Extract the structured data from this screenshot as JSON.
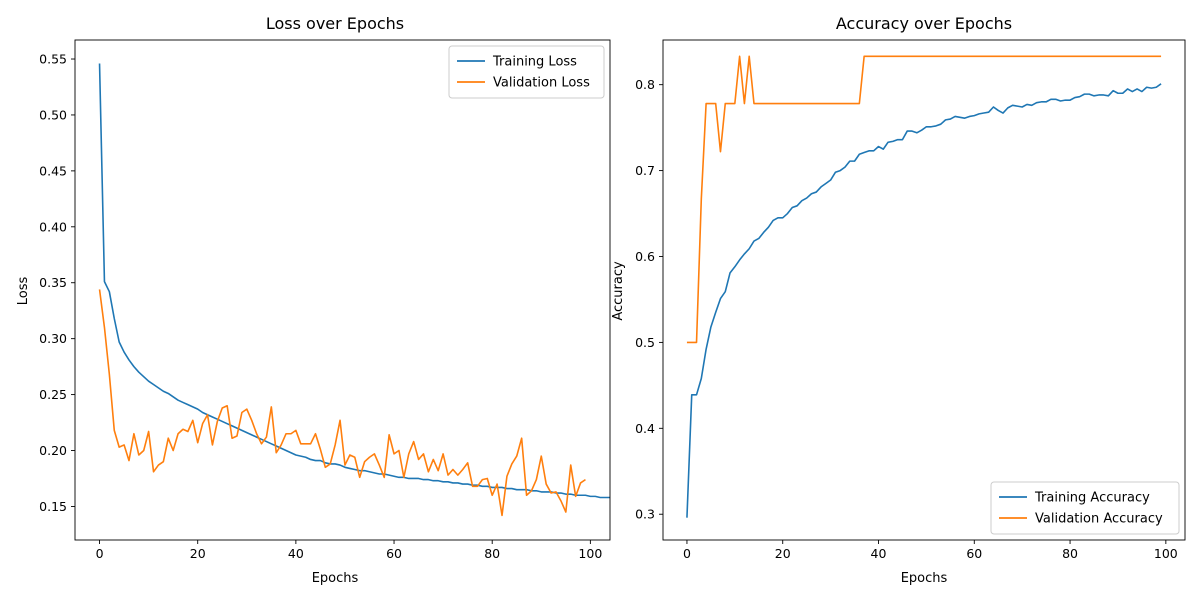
{
  "chart_data": [
    {
      "type": "line",
      "title": "Loss over Epochs",
      "xlabel": "Epochs",
      "ylabel": "Loss",
      "xlim": [
        -5,
        104
      ],
      "ylim": [
        0.12,
        0.567
      ],
      "xticks": [
        0,
        20,
        40,
        60,
        80,
        100
      ],
      "yticks": [
        0.15,
        0.2,
        0.25,
        0.3,
        0.35,
        0.4,
        0.45,
        0.5,
        0.55
      ],
      "ytick_decimals": 2,
      "legend_position": "upper right",
      "series": [
        {
          "name": "Training Loss",
          "color": "#1f77b4",
          "x_start": 0,
          "values": [
            0.546,
            0.351,
            0.342,
            0.318,
            0.297,
            0.288,
            0.281,
            0.275,
            0.27,
            0.266,
            0.262,
            0.259,
            0.256,
            0.253,
            0.251,
            0.248,
            0.245,
            0.243,
            0.241,
            0.239,
            0.237,
            0.234,
            0.232,
            0.23,
            0.228,
            0.226,
            0.224,
            0.222,
            0.22,
            0.218,
            0.216,
            0.214,
            0.212,
            0.21,
            0.208,
            0.206,
            0.204,
            0.202,
            0.2,
            0.198,
            0.196,
            0.195,
            0.194,
            0.192,
            0.191,
            0.191,
            0.189,
            0.188,
            0.188,
            0.187,
            0.185,
            0.184,
            0.183,
            0.182,
            0.182,
            0.181,
            0.18,
            0.179,
            0.179,
            0.178,
            0.177,
            0.176,
            0.176,
            0.175,
            0.175,
            0.175,
            0.174,
            0.174,
            0.173,
            0.173,
            0.172,
            0.172,
            0.171,
            0.171,
            0.17,
            0.17,
            0.169,
            0.169,
            0.168,
            0.168,
            0.167,
            0.167,
            0.167,
            0.166,
            0.166,
            0.165,
            0.165,
            0.165,
            0.164,
            0.164,
            0.163,
            0.163,
            0.163,
            0.162,
            0.162,
            0.161,
            0.161,
            0.16,
            0.16,
            0.16,
            0.159,
            0.159,
            0.158,
            0.158,
            0.158,
            0.157,
            0.156
          ]
        },
        {
          "name": "Validation Loss",
          "color": "#ff7f0e",
          "x_start": 0,
          "values": [
            0.344,
            0.31,
            0.268,
            0.218,
            0.203,
            0.205,
            0.191,
            0.215,
            0.196,
            0.2,
            0.217,
            0.181,
            0.187,
            0.19,
            0.211,
            0.2,
            0.215,
            0.219,
            0.217,
            0.227,
            0.207,
            0.224,
            0.232,
            0.205,
            0.226,
            0.238,
            0.24,
            0.211,
            0.213,
            0.234,
            0.237,
            0.227,
            0.215,
            0.206,
            0.212,
            0.239,
            0.198,
            0.205,
            0.215,
            0.215,
            0.218,
            0.206,
            0.206,
            0.206,
            0.215,
            0.201,
            0.185,
            0.188,
            0.205,
            0.227,
            0.187,
            0.196,
            0.194,
            0.176,
            0.19,
            0.194,
            0.197,
            0.187,
            0.176,
            0.214,
            0.197,
            0.2,
            0.176,
            0.197,
            0.208,
            0.192,
            0.197,
            0.181,
            0.192,
            0.182,
            0.197,
            0.178,
            0.183,
            0.178,
            0.183,
            0.189,
            0.168,
            0.168,
            0.174,
            0.175,
            0.16,
            0.17,
            0.142,
            0.177,
            0.188,
            0.195,
            0.211,
            0.16,
            0.164,
            0.174,
            0.195,
            0.17,
            0.162,
            0.163,
            0.155,
            0.145,
            0.187,
            0.159,
            0.171,
            0.174
          ]
        }
      ]
    },
    {
      "type": "line",
      "title": "Accuracy over Epochs",
      "xlabel": "Epochs",
      "ylabel": "Accuracy",
      "xlim": [
        -5,
        104
      ],
      "ylim": [
        0.27,
        0.852
      ],
      "xticks": [
        0,
        20,
        40,
        60,
        80,
        100
      ],
      "yticks": [
        0.3,
        0.4,
        0.5,
        0.6,
        0.7,
        0.8
      ],
      "ytick_decimals": 1,
      "legend_position": "lower right",
      "series": [
        {
          "name": "Training Accuracy",
          "color": "#1f77b4",
          "x_start": 0,
          "values": [
            0.296,
            0.439,
            0.439,
            0.458,
            0.492,
            0.518,
            0.535,
            0.551,
            0.559,
            0.581,
            0.588,
            0.596,
            0.603,
            0.609,
            0.618,
            0.621,
            0.628,
            0.634,
            0.642,
            0.645,
            0.645,
            0.65,
            0.657,
            0.659,
            0.665,
            0.668,
            0.673,
            0.675,
            0.681,
            0.685,
            0.689,
            0.698,
            0.7,
            0.704,
            0.711,
            0.711,
            0.719,
            0.721,
            0.723,
            0.723,
            0.728,
            0.725,
            0.733,
            0.734,
            0.736,
            0.736,
            0.746,
            0.746,
            0.744,
            0.747,
            0.751,
            0.751,
            0.752,
            0.754,
            0.759,
            0.76,
            0.763,
            0.762,
            0.761,
            0.763,
            0.764,
            0.766,
            0.767,
            0.768,
            0.774,
            0.77,
            0.767,
            0.773,
            0.776,
            0.775,
            0.774,
            0.777,
            0.776,
            0.779,
            0.78,
            0.78,
            0.783,
            0.783,
            0.781,
            0.782,
            0.782,
            0.785,
            0.786,
            0.789,
            0.789,
            0.787,
            0.788,
            0.788,
            0.787,
            0.793,
            0.79,
            0.79,
            0.795,
            0.792,
            0.795,
            0.792,
            0.797,
            0.796,
            0.797,
            0.801
          ]
        },
        {
          "name": "Validation Accuracy",
          "color": "#ff7f0e",
          "x_start": 0,
          "values": [
            0.5,
            0.5,
            0.5,
            0.667,
            0.778,
            0.778,
            0.778,
            0.722,
            0.778,
            0.778,
            0.778,
            0.833,
            0.778,
            0.833,
            0.778,
            0.778,
            0.778,
            0.778,
            0.778,
            0.778,
            0.778,
            0.778,
            0.778,
            0.778,
            0.778,
            0.778,
            0.778,
            0.778,
            0.778,
            0.778,
            0.778,
            0.778,
            0.778,
            0.778,
            0.778,
            0.778,
            0.778,
            0.833,
            0.833,
            0.833,
            0.833,
            0.833,
            0.833,
            0.833,
            0.833,
            0.833,
            0.833,
            0.833,
            0.833,
            0.833,
            0.833,
            0.833,
            0.833,
            0.833,
            0.833,
            0.833,
            0.833,
            0.833,
            0.833,
            0.833,
            0.833,
            0.833,
            0.833,
            0.833,
            0.833,
            0.833,
            0.833,
            0.833,
            0.833,
            0.833,
            0.833,
            0.833,
            0.833,
            0.833,
            0.833,
            0.833,
            0.833,
            0.833,
            0.833,
            0.833,
            0.833,
            0.833,
            0.833,
            0.833,
            0.833,
            0.833,
            0.833,
            0.833,
            0.833,
            0.833,
            0.833,
            0.833,
            0.833,
            0.833,
            0.833,
            0.833,
            0.833,
            0.833,
            0.833,
            0.833
          ]
        }
      ]
    }
  ]
}
